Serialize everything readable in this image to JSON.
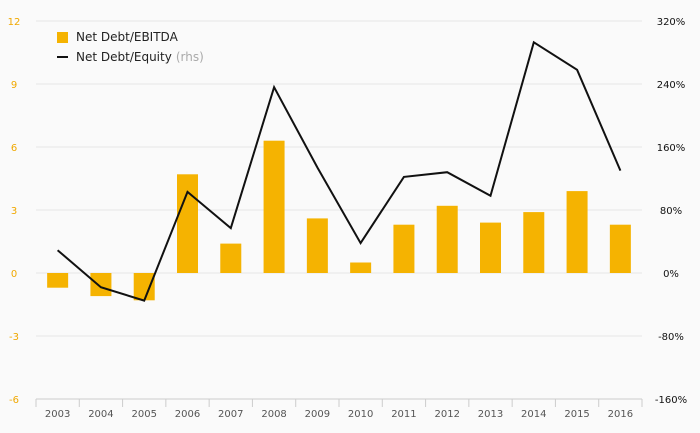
{
  "colors": {
    "bar": "#f5b301",
    "line": "#111111",
    "left_axis_text": "#f0a800",
    "right_axis_text": "#111111",
    "grid": "#e6e6e6",
    "category_text": "#555555"
  },
  "legend": {
    "bar_label": "Net Debt/EBITDA",
    "line_label": "Net Debt/Equity",
    "line_note": "(rhs)"
  },
  "chart_data": {
    "type": "bar+line",
    "categories": [
      "2003",
      "2004",
      "2005",
      "2006",
      "2007",
      "2008",
      "2009",
      "2010",
      "2011",
      "2012",
      "2013",
      "2014",
      "2015",
      "2016"
    ],
    "series": [
      {
        "name": "Net Debt/EBITDA",
        "type": "bar",
        "axis": "left",
        "values": [
          -0.7,
          -1.1,
          -1.3,
          4.7,
          1.4,
          6.3,
          2.6,
          0.5,
          2.3,
          3.2,
          2.4,
          2.9,
          3.9,
          2.3
        ]
      },
      {
        "name": "Net Debt/Equity (rhs)",
        "type": "line",
        "axis": "right",
        "values": [
          29,
          -18,
          -35,
          103,
          57,
          236,
          134,
          38,
          122,
          128,
          98,
          293,
          258,
          130
        ]
      }
    ],
    "left_axis": {
      "ylim": [
        -6,
        12
      ],
      "ticks": [
        "-6",
        "-3",
        "0",
        "3",
        "6",
        "9",
        "12"
      ]
    },
    "right_axis": {
      "ylim": [
        -160,
        320
      ],
      "ticks": [
        "-160%",
        "-80%",
        "0%",
        "80%",
        "160%",
        "240%",
        "320%"
      ]
    },
    "grid": true,
    "legend_position": "top-left"
  }
}
